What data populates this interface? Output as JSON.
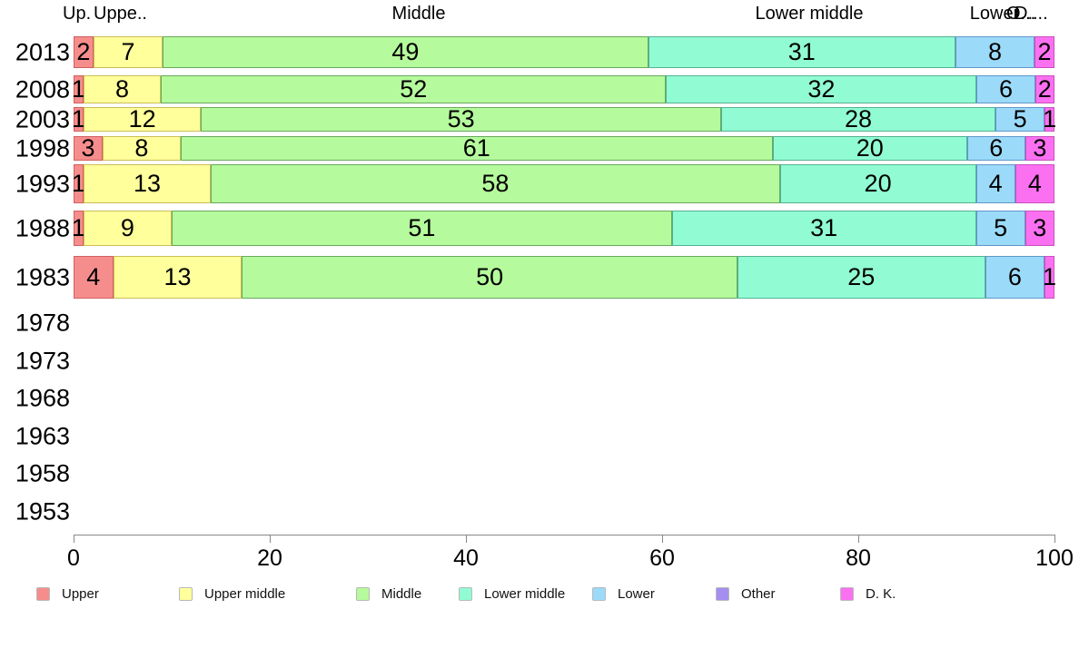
{
  "chart_data": {
    "type": "bar",
    "stacked": true,
    "orientation": "horizontal",
    "unit": "percent",
    "title": "",
    "xlabel": "",
    "ylabel": "",
    "xlim": [
      0,
      100
    ],
    "x_ticks": [
      "0",
      "20",
      "40",
      "60",
      "80",
      "100"
    ],
    "grid": false,
    "legend_position": "bottom",
    "categories": [
      "Upper",
      "Upper middle",
      "Middle",
      "Lower middle",
      "Lower",
      "Other",
      "D. K."
    ],
    "colors": {
      "Upper": {
        "fill": "#F68D8D",
        "border": "#D25F5F"
      },
      "Upper middle": {
        "fill": "#FFFF9C",
        "border": "#CBBE55"
      },
      "Middle": {
        "fill": "#B5FA9C",
        "border": "#68A95E"
      },
      "Lower middle": {
        "fill": "#91FCD4",
        "border": "#55B193"
      },
      "Lower": {
        "fill": "#9BDAF9",
        "border": "#6197CB"
      },
      "Other": {
        "fill": "#A48EF2",
        "border": "#7765C5"
      },
      "D. K.": {
        "fill": "#FB70F1",
        "border": "#C850BE"
      }
    },
    "rows": [
      {
        "year": "2013",
        "values": [
          2,
          7,
          49,
          31,
          8,
          0,
          2
        ]
      },
      {
        "year": "2008",
        "values": [
          1,
          8,
          52,
          32,
          6,
          0,
          2
        ]
      },
      {
        "year": "2003",
        "values": [
          1,
          12,
          53,
          28,
          5,
          0,
          1
        ]
      },
      {
        "year": "1998",
        "values": [
          3,
          8,
          61,
          20,
          6,
          0,
          3
        ]
      },
      {
        "year": "1993",
        "values": [
          1,
          13,
          58,
          20,
          4,
          0,
          4
        ]
      },
      {
        "year": "1988",
        "values": [
          1,
          9,
          51,
          31,
          5,
          0,
          3
        ]
      },
      {
        "year": "1983",
        "values": [
          4,
          13,
          50,
          25,
          6,
          0,
          1
        ]
      }
    ],
    "empty_years": [
      "1978",
      "1973",
      "1968",
      "1963",
      "1958",
      "1953"
    ]
  },
  "column_headers": [
    {
      "text": "Up."
    },
    {
      "text": "Uppe.."
    },
    {
      "text": "Middle"
    },
    {
      "text": "Lower middle"
    },
    {
      "text": "Lower"
    },
    {
      "text": "O..."
    },
    {
      "text": "D...."
    }
  ],
  "legend": {
    "items": [
      {
        "label": "Upper"
      },
      {
        "label": "Upper middle"
      },
      {
        "label": "Middle"
      },
      {
        "label": "Lower middle"
      },
      {
        "label": "Lower"
      },
      {
        "label": "Other"
      },
      {
        "label": "D. K."
      }
    ]
  }
}
